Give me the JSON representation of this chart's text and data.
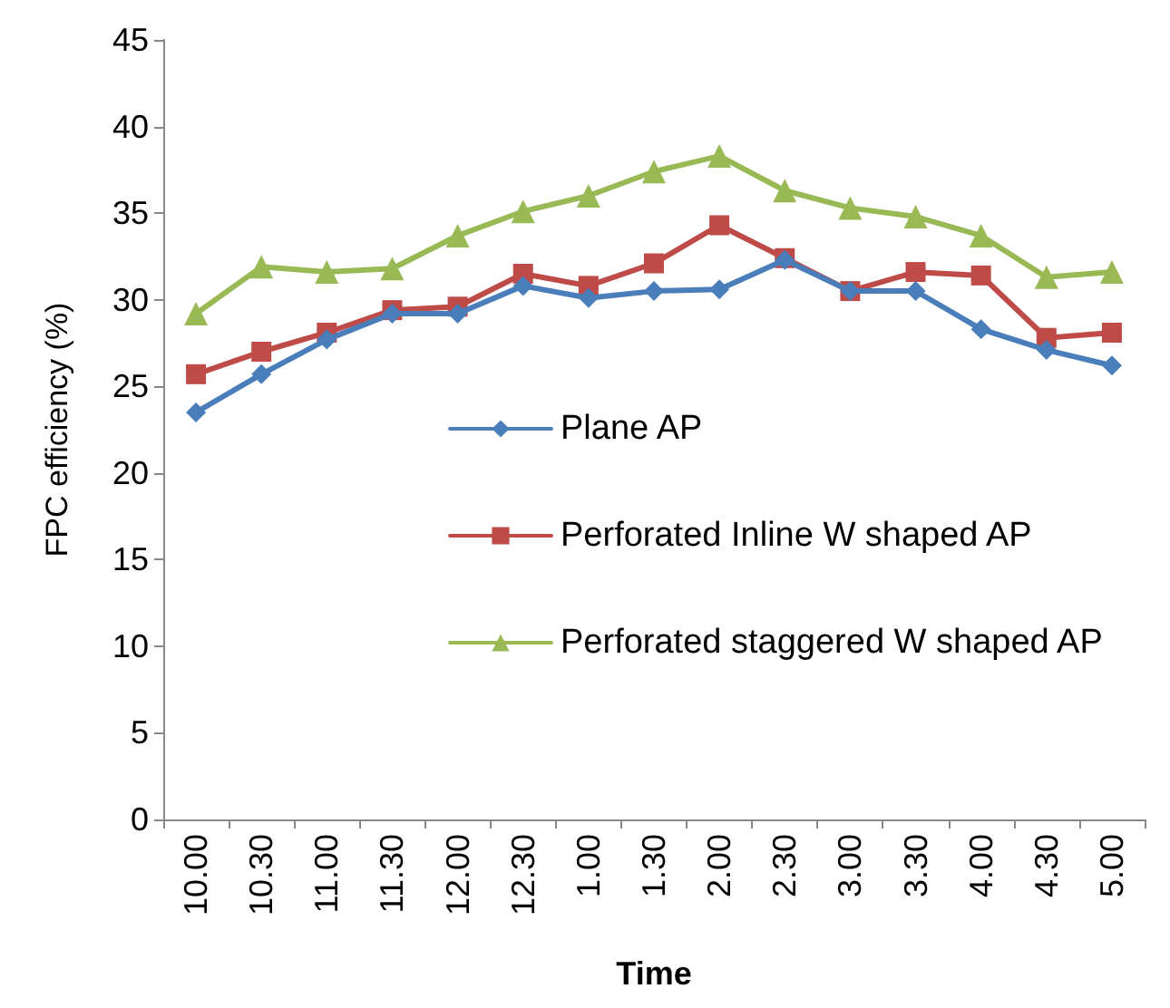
{
  "chart_data": {
    "type": "line",
    "xlabel": "Time",
    "ylabel": "FPC efficiency (%)",
    "categories": [
      "10.00",
      "10.30",
      "11.00",
      "11.30",
      "12.00",
      "12.30",
      "1.00",
      "1.30",
      "2.00",
      "2.30",
      "3.00",
      "3.30",
      "4.00",
      "4.30",
      "5.00"
    ],
    "series": [
      {
        "name": "Plane AP",
        "color": "#4a7ebb",
        "marker": "diamond",
        "values": [
          23.5,
          25.7,
          27.7,
          29.2,
          29.2,
          30.8,
          30.1,
          30.5,
          30.6,
          32.3,
          30.5,
          30.5,
          28.3,
          27.1,
          26.2
        ]
      },
      {
        "name": "Perforated Inline W shaped AP",
        "color": "#be4b48",
        "marker": "square",
        "values": [
          25.7,
          27.0,
          28.1,
          29.4,
          29.6,
          31.5,
          30.8,
          32.1,
          34.3,
          32.4,
          30.5,
          31.6,
          31.4,
          27.8,
          28.1
        ]
      },
      {
        "name": "Perforated staggered W shaped AP",
        "color": "#98b954",
        "marker": "triangle",
        "values": [
          29.2,
          31.9,
          31.6,
          31.8,
          33.7,
          35.1,
          36.0,
          37.4,
          38.3,
          36.3,
          35.3,
          34.8,
          33.7,
          31.3,
          31.6
        ]
      }
    ],
    "ylim": [
      0,
      45
    ],
    "yticks": [
      0,
      5,
      10,
      15,
      20,
      25,
      30,
      35,
      40,
      45
    ],
    "grid": false,
    "legend": "center",
    "line_style": "solid"
  }
}
